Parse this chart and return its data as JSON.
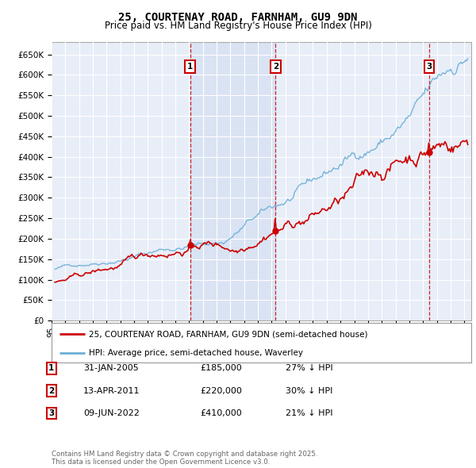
{
  "title": "25, COURTENAY ROAD, FARNHAM, GU9 9DN",
  "subtitle": "Price paid vs. HM Land Registry's House Price Index (HPI)",
  "ylim": [
    0,
    680000
  ],
  "yticks": [
    0,
    50000,
    100000,
    150000,
    200000,
    250000,
    300000,
    350000,
    400000,
    450000,
    500000,
    550000,
    600000,
    650000
  ],
  "xlim_start": 1995.25,
  "xlim_end": 2025.5,
  "legend_line1": "25, COURTENAY ROAD, FARNHAM, GU9 9DN (semi-detached house)",
  "legend_line2": "HPI: Average price, semi-detached house, Waverley",
  "transactions": [
    {
      "num": 1,
      "date": "31-JAN-2005",
      "price": "£185,000",
      "hpi": "27% ↓ HPI",
      "x": 2005.08
    },
    {
      "num": 2,
      "date": "13-APR-2011",
      "price": "£220,000",
      "hpi": "30% ↓ HPI",
      "x": 2011.28
    },
    {
      "num": 3,
      "date": "09-JUN-2022",
      "price": "£410,000",
      "hpi": "21% ↓ HPI",
      "x": 2022.44
    }
  ],
  "copyright": "Contains HM Land Registry data © Crown copyright and database right 2025.\nThis data is licensed under the Open Government Licence v3.0.",
  "hpi_color": "#6baed6",
  "price_color": "#cc0000",
  "background_color": "#e8eef8",
  "shade_color": "#d0ddf0",
  "transaction_vline_color": "#cc0000",
  "grid_color": "#cccccc",
  "title_fontsize": 10,
  "subtitle_fontsize": 8.5
}
